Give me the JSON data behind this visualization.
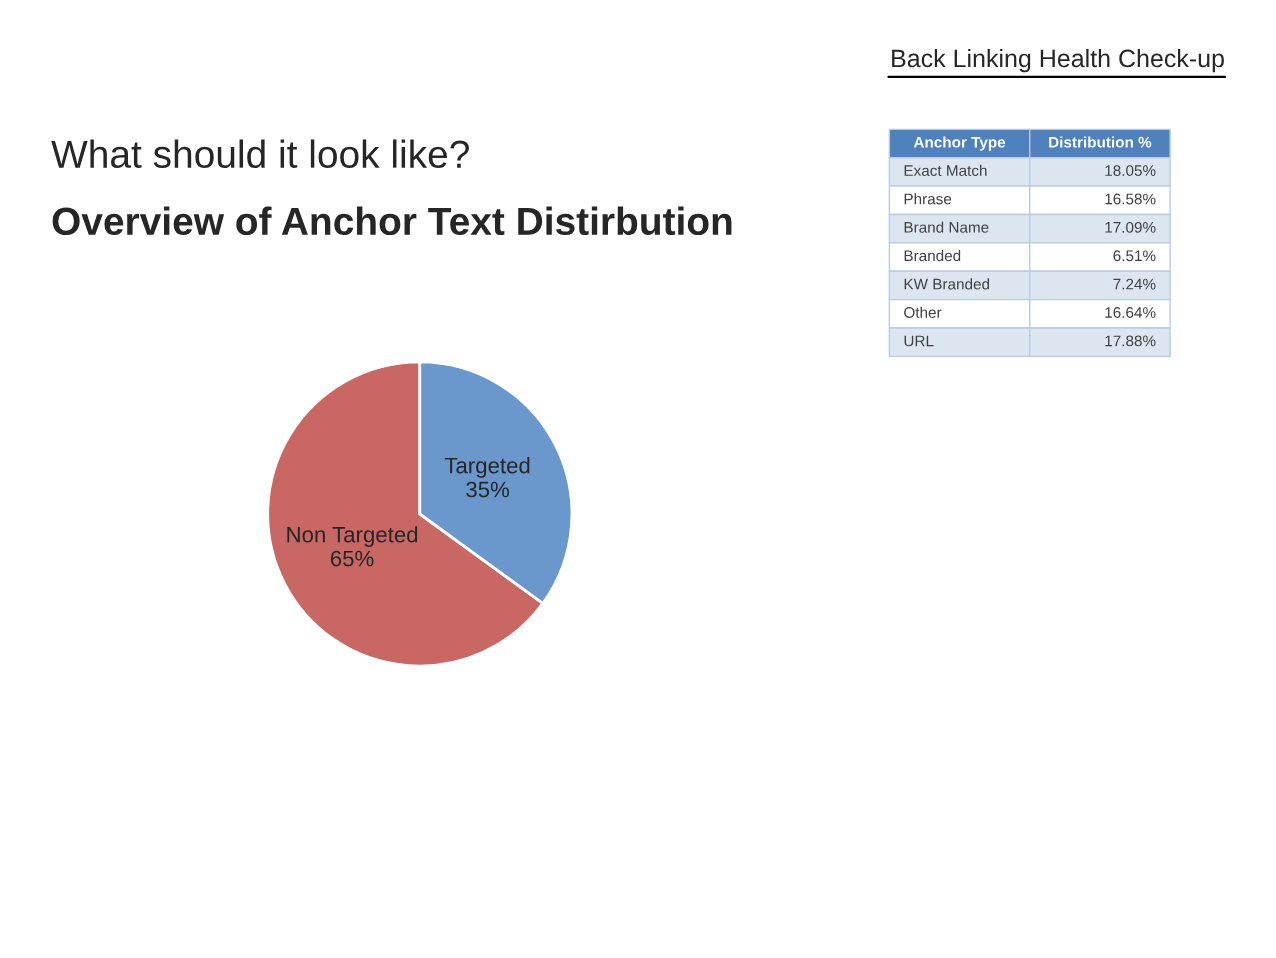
{
  "chart_data": [
    {
      "type": "pie",
      "title": "Overview of Anchor Text Distirbution",
      "categories": [
        "Non Targeted",
        "Targeted"
      ],
      "values": [
        65,
        35
      ],
      "colors": [
        "#c96765",
        "#6a98cc"
      ],
      "value_labels": [
        "65%",
        "35%"
      ],
      "annotations": [
        "Back Linking Health Check-up",
        "What should it look like?"
      ]
    },
    {
      "type": "other",
      "xlabel": "Anchor Type",
      "ylabel": "Distribution %",
      "categories": [
        "Exact Match",
        "Phrase",
        "Brand Name",
        "Branded",
        "KW Branded",
        "Other",
        "URL"
      ],
      "value_labels": [
        "18.05%",
        "16.58%",
        "17.09%",
        "6.51%",
        "7.24%",
        "16.64%",
        "17.88%"
      ]
    }
  ]
}
